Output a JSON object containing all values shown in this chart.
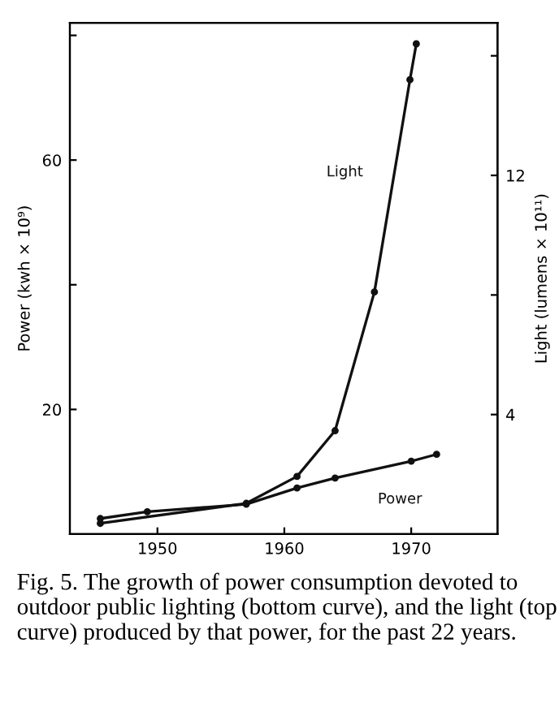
{
  "chart_data": {
    "type": "line",
    "xlabel": null,
    "ylabel": "Power (kwh × 10⁹)",
    "y2label": "Light (lumens × 10¹¹)",
    "xlim": [
      1943.1,
      1976.8
    ],
    "xticks": [
      1950,
      1960,
      1970
    ],
    "ylim": [
      0,
      82
    ],
    "yticks": [
      {
        "value": 20,
        "label": "20"
      },
      {
        "value": 40,
        "label": null
      },
      {
        "value": 60,
        "label": "60"
      },
      {
        "value": 80,
        "label": null
      }
    ],
    "y2lim": [
      0,
      17.1
    ],
    "y2ticks": [
      {
        "value": 4,
        "label": "4"
      },
      {
        "value": 8,
        "label": null
      },
      {
        "value": 12,
        "label": "12"
      },
      {
        "value": 16,
        "label": null
      }
    ],
    "marker": "circle",
    "grid": false,
    "legend": false,
    "series": [
      {
        "name": "Power",
        "color": "#111111",
        "x": [
          1945.5,
          1949.2,
          1957,
          1961,
          1964,
          1970,
          1972
        ],
        "values": [
          2.5,
          3.6,
          4.8,
          7.4,
          9.0,
          11.7,
          12.8
        ]
      },
      {
        "name": "Light",
        "color": "#111111",
        "axis": "y2",
        "x": [
          1945.5,
          1957,
          1961,
          1964,
          1967.1,
          1969.9,
          1970.4
        ],
        "values": [
          0.36,
          1.03,
          1.93,
          3.46,
          8.1,
          15.2,
          16.4
        ]
      }
    ],
    "annotations": [
      "Fig. 5. The growth of power consumption devoted to outdoor public lighting (bottom curve), and the light (top curve) produced by that power, for the past 22 years."
    ]
  }
}
